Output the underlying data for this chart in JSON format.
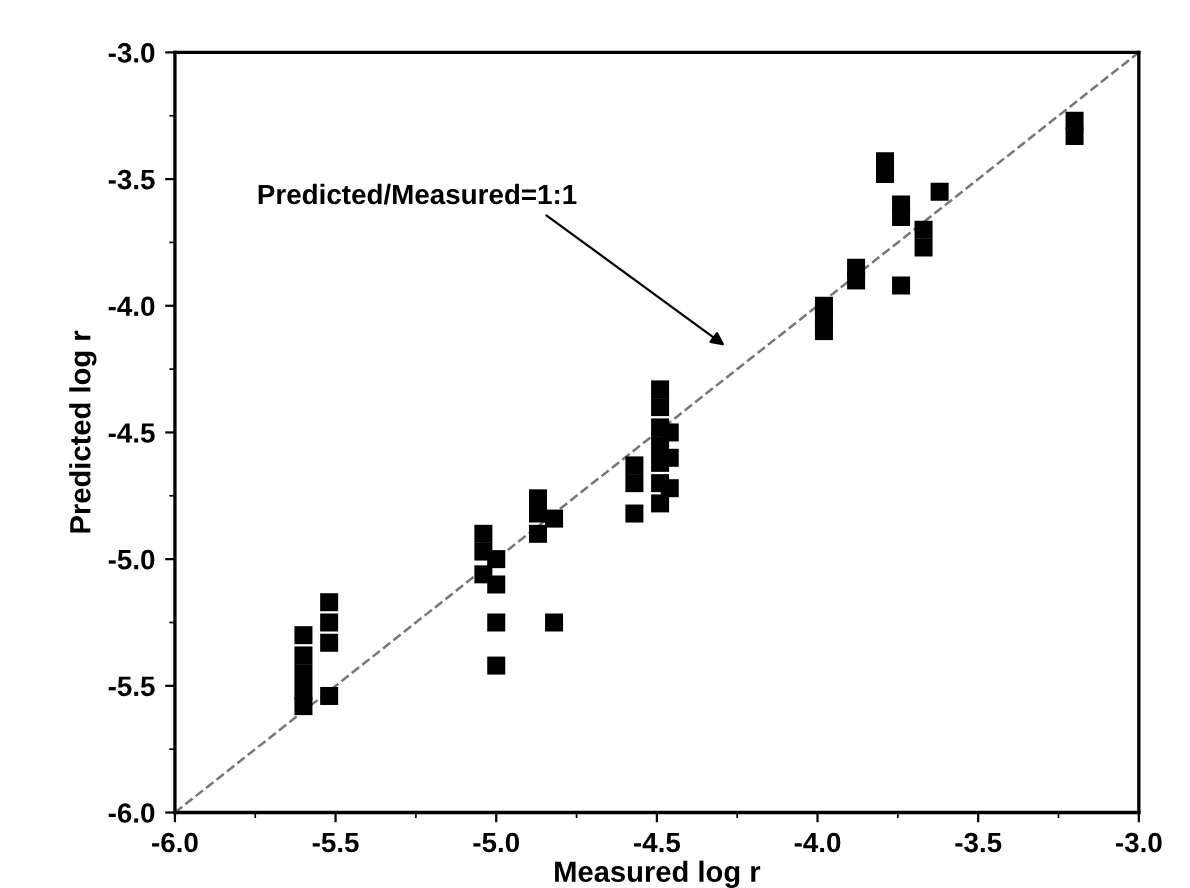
{
  "chart_data": {
    "type": "scatter",
    "xlabel": "Measured log r",
    "ylabel": "Predicted log r",
    "xlim": [
      -6.0,
      -3.0
    ],
    "ylim": [
      -6.0,
      -3.0
    ],
    "xticks": [
      {
        "value": -6,
        "label": "-6.0"
      },
      {
        "value": -5.5,
        "label": "-5.5"
      },
      {
        "value": -5,
        "label": "-5.0"
      },
      {
        "value": -4.5,
        "label": "-4.5"
      },
      {
        "value": -4,
        "label": "-4.0"
      },
      {
        "value": -3.5,
        "label": "-3.5"
      },
      {
        "value": -3,
        "label": "-3.0"
      }
    ],
    "yticks": [
      {
        "value": -6,
        "label": "-6.0"
      },
      {
        "value": -5.5,
        "label": "-5.5"
      },
      {
        "value": -5,
        "label": "-5.0"
      },
      {
        "value": -4.5,
        "label": "-4.5"
      },
      {
        "value": -4,
        "label": "-4.0"
      },
      {
        "value": -3.5,
        "label": "-3.5"
      },
      {
        "value": -3,
        "label": "-3.0"
      }
    ],
    "grid": false,
    "marker": "square",
    "series": [
      {
        "color": "#000000",
        "x": [
          -5.6,
          -5.6,
          -5.6,
          -5.6,
          -5.6,
          -5.52,
          -5.52,
          -5.52,
          -5.52,
          -5.04,
          -5.04,
          -5.04,
          -5.0,
          -5.0,
          -5.0,
          -5.0,
          -4.87,
          -4.87,
          -4.87,
          -4.82,
          -4.82,
          -4.57,
          -4.57,
          -4.57,
          -4.49,
          -4.49,
          -4.49,
          -4.49,
          -4.49,
          -4.49,
          -4.49,
          -4.46,
          -4.46,
          -4.46,
          -3.98,
          -3.98,
          -3.98,
          -3.88,
          -3.88,
          -3.79,
          -3.79,
          -3.74,
          -3.74,
          -3.74,
          -3.67,
          -3.67,
          -3.62,
          -3.2,
          -3.2
        ],
        "values": [
          -5.3,
          -5.38,
          -5.45,
          -5.52,
          -5.58,
          -5.17,
          -5.25,
          -5.33,
          -5.54,
          -4.9,
          -4.97,
          -5.06,
          -5.0,
          -5.1,
          -5.25,
          -5.42,
          -4.76,
          -4.82,
          -4.9,
          -4.84,
          -5.25,
          -4.63,
          -4.7,
          -4.82,
          -4.33,
          -4.4,
          -4.48,
          -4.55,
          -4.62,
          -4.7,
          -4.78,
          -4.5,
          -4.6,
          -4.72,
          -4.0,
          -4.05,
          -4.1,
          -3.85,
          -3.9,
          -3.43,
          -3.48,
          -3.6,
          -3.65,
          -3.92,
          -3.7,
          -3.77,
          -3.55,
          -3.27,
          -3.33
        ]
      },
      {
        "type": "line",
        "color": "#777777",
        "line_style": "dashed",
        "marker": "none",
        "x": [
          -6.0,
          -3.0
        ],
        "values": [
          -6.0,
          -3.0
        ]
      }
    ],
    "annotations": [
      "Predicted/Measured=1:1"
    ]
  }
}
